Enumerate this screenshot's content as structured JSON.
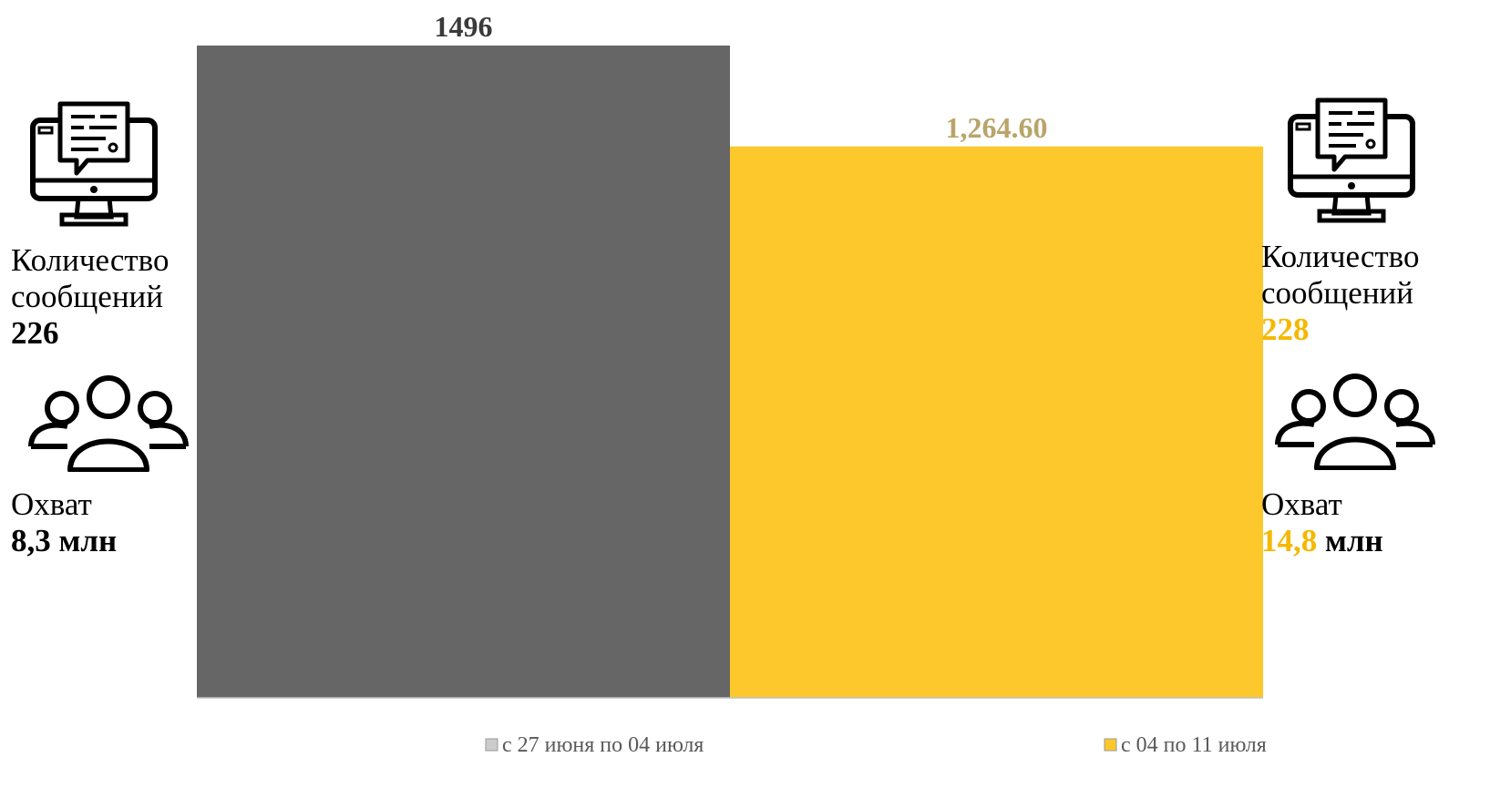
{
  "chart_data": {
    "type": "bar",
    "categories": [
      "с 27 июня по 04 июля",
      "с 04 по 11 июля"
    ],
    "values": [
      1496,
      1264.6
    ],
    "data_labels": [
      "1496",
      "1,264.60"
    ],
    "ylim": [
      0,
      1496
    ],
    "grid": false,
    "legend_placement": "bottom",
    "colors": [
      "#666666",
      "#fdc82b"
    ]
  },
  "left_panel": {
    "icon": "computer-message-icon",
    "messages_label_1": "Количество",
    "messages_label_2": "сообщений",
    "messages_value": "226",
    "people_icon": "people-group-icon",
    "reach_label": "Охват",
    "reach_value": "8,3 млн"
  },
  "right_panel": {
    "icon": "computer-message-icon",
    "messages_label_1": "Количество",
    "messages_label_2": "сообщений",
    "messages_value": "228",
    "people_icon": "people-group-icon",
    "reach_label": "Охват",
    "reach_number": "14,8",
    "reach_unit": " млн",
    "accent": "#f5b800"
  },
  "data_label_colors": [
    "#3a3a3a",
    "#b9a46a"
  ]
}
